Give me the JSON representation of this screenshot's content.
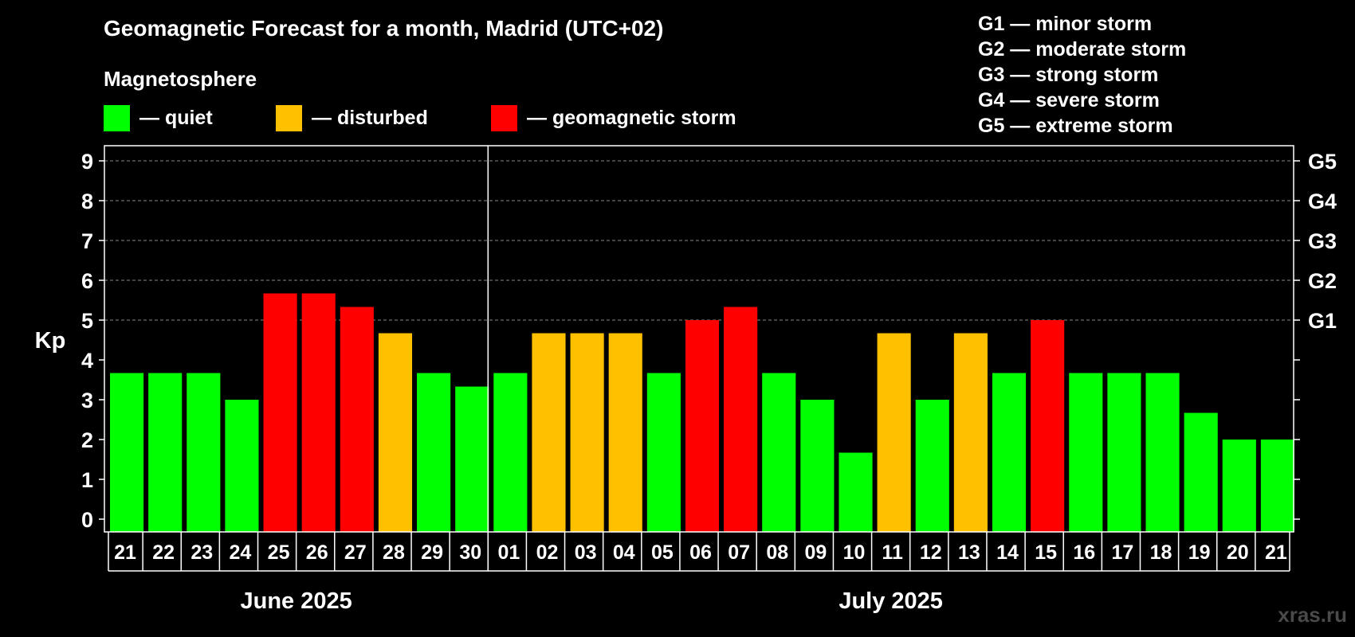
{
  "title": "Geomagnetic Forecast for a month, Madrid (UTC+02)",
  "subtitle": "Magnetosphere",
  "legend": [
    {
      "label": "— quiet",
      "color": "#00ff00"
    },
    {
      "label": "— disturbed",
      "color": "#ffc000"
    },
    {
      "label": "— geomagnetic storm",
      "color": "#ff0000"
    }
  ],
  "g_scale": [
    {
      "label": "G1 — minor storm"
    },
    {
      "label": "G2 — moderate storm"
    },
    {
      "label": "G3 — strong storm"
    },
    {
      "label": "G4 — severe storm"
    },
    {
      "label": "G5 — extreme storm"
    }
  ],
  "watermark": "xras.ru",
  "chart_data": {
    "type": "bar",
    "title": "Geomagnetic Forecast for a month, Madrid (UTC+02)",
    "ylabel": "Kp",
    "ylim": [
      0,
      9
    ],
    "yticks": [
      "0",
      "1",
      "2",
      "3",
      "4",
      "5",
      "6",
      "7",
      "8",
      "9"
    ],
    "right_ticks": [
      {
        "value": 5,
        "label": "G1"
      },
      {
        "value": 6,
        "label": "G2"
      },
      {
        "value": 7,
        "label": "G3"
      },
      {
        "value": 8,
        "label": "G4"
      },
      {
        "value": 9,
        "label": "G5"
      }
    ],
    "grid": "dashed horizontal at Kp 5-9",
    "months": [
      {
        "label": "June 2025",
        "count": 10
      },
      {
        "label": "July 2025",
        "count": 21
      }
    ],
    "categories": [
      "21",
      "22",
      "23",
      "24",
      "25",
      "26",
      "27",
      "28",
      "29",
      "30",
      "01",
      "02",
      "03",
      "04",
      "05",
      "06",
      "07",
      "08",
      "09",
      "10",
      "11",
      "12",
      "13",
      "14",
      "15",
      "16",
      "17",
      "18",
      "19",
      "20",
      "21"
    ],
    "values": [
      3.67,
      3.67,
      3.67,
      3.0,
      5.67,
      5.67,
      5.33,
      4.67,
      3.67,
      3.33,
      3.67,
      4.67,
      4.67,
      4.67,
      3.67,
      5.0,
      5.33,
      3.67,
      3.0,
      1.67,
      4.67,
      3.0,
      4.67,
      3.67,
      5.0,
      3.67,
      3.67,
      3.67,
      2.67,
      2.0,
      2.0
    ],
    "colors": [
      "#00ff00",
      "#00ff00",
      "#00ff00",
      "#00ff00",
      "#ff0000",
      "#ff0000",
      "#ff0000",
      "#ffc000",
      "#00ff00",
      "#00ff00",
      "#00ff00",
      "#ffc000",
      "#ffc000",
      "#ffc000",
      "#00ff00",
      "#ff0000",
      "#ff0000",
      "#00ff00",
      "#00ff00",
      "#00ff00",
      "#ffc000",
      "#00ff00",
      "#ffc000",
      "#00ff00",
      "#ff0000",
      "#00ff00",
      "#00ff00",
      "#00ff00",
      "#00ff00",
      "#00ff00",
      "#00ff00"
    ]
  }
}
